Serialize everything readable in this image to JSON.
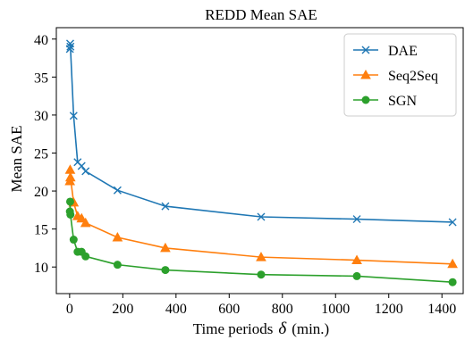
{
  "chart_data": {
    "type": "line",
    "title": "REDD Mean SAE",
    "xlabel_prefix": "Time periods",
    "xlabel_symbol": "δ",
    "xlabel_suffix": "(min.)",
    "ylabel": "Mean SAE",
    "xlim": [
      -50,
      1480
    ],
    "ylim": [
      6.5,
      41.5
    ],
    "xticks": [
      0,
      200,
      400,
      600,
      800,
      1000,
      1200,
      1400
    ],
    "yticks": [
      10,
      15,
      20,
      25,
      30,
      35,
      40
    ],
    "grid": false,
    "legend_position": "top-right",
    "series": [
      {
        "name": "DAE",
        "color": "#1f77b4",
        "marker": "x",
        "x": [
          1,
          2,
          3,
          15,
          30,
          45,
          60,
          180,
          360,
          720,
          1080,
          1440
        ],
        "y": [
          38.7,
          39.4,
          39.0,
          29.9,
          23.8,
          23.3,
          22.6,
          20.1,
          18.0,
          16.6,
          16.3,
          15.9
        ]
      },
      {
        "name": "Seq2Seq",
        "color": "#ff7f0e",
        "marker": "triangle",
        "x": [
          1,
          2,
          3,
          15,
          30,
          45,
          60,
          180,
          360,
          720,
          1080,
          1440
        ],
        "y": [
          21.3,
          22.8,
          21.8,
          18.5,
          16.7,
          16.4,
          15.8,
          13.9,
          12.5,
          11.3,
          10.9,
          10.4
        ]
      },
      {
        "name": "SGN",
        "color": "#2ca02c",
        "marker": "circle",
        "x": [
          1,
          2,
          3,
          15,
          30,
          45,
          60,
          180,
          360,
          720,
          1080,
          1440
        ],
        "y": [
          17.3,
          18.6,
          16.9,
          13.6,
          12.0,
          12.0,
          11.4,
          10.3,
          9.6,
          9.0,
          8.8,
          8.0
        ]
      }
    ]
  }
}
